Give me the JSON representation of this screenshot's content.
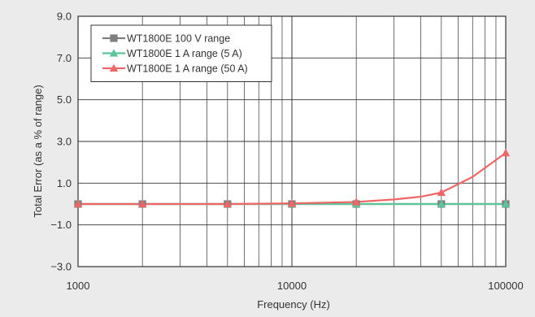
{
  "chart_data": {
    "type": "line",
    "title": "",
    "xlabel": "Frequency (Hz)",
    "ylabel": "Total Error (as a % of range)",
    "x_scale": "log",
    "xlim": [
      1000,
      100000
    ],
    "ylim": [
      -3.0,
      9.0
    ],
    "x_ticks": [
      1000,
      10000,
      100000
    ],
    "x_tick_labels": [
      "1000",
      "10000",
      "100000"
    ],
    "y_ticks": [
      -3.0,
      -1.0,
      1.0,
      3.0,
      5.0,
      7.0,
      9.0
    ],
    "y_tick_labels": [
      "−3.0",
      "−1.0",
      "1.0",
      "3.0",
      "5.0",
      "7.0",
      "9.0"
    ],
    "grid": true,
    "legend_position": "top-left",
    "series": [
      {
        "name": "WT1800E 100 V range",
        "color": "#7f7f7f",
        "marker": "square",
        "points": [
          [
            1000,
            0.0
          ],
          [
            2000,
            0.0
          ],
          [
            5000,
            0.0
          ],
          [
            10000,
            0.0
          ],
          [
            20000,
            0.0
          ],
          [
            50000,
            0.0
          ],
          [
            100000,
            0.0
          ]
        ]
      },
      {
        "name": "WT1800E 1 A range (5 A)",
        "color": "#5cc49a",
        "marker": "triangle",
        "points": [
          [
            1000,
            0.0
          ],
          [
            2000,
            0.0
          ],
          [
            5000,
            0.0
          ],
          [
            10000,
            0.0
          ],
          [
            20000,
            0.0
          ],
          [
            50000,
            0.0
          ],
          [
            100000,
            0.0
          ]
        ]
      },
      {
        "name": "WT1800E 1 A range (50 A)",
        "color": "#f06565",
        "marker": "triangle",
        "points": [
          [
            1000,
            0.0
          ],
          [
            2000,
            0.0
          ],
          [
            5000,
            0.0
          ],
          [
            10000,
            0.03
          ],
          [
            20000,
            0.1
          ],
          [
            30000,
            0.22
          ],
          [
            40000,
            0.35
          ],
          [
            50000,
            0.55
          ],
          [
            70000,
            1.3
          ],
          [
            100000,
            2.45
          ]
        ]
      }
    ]
  }
}
